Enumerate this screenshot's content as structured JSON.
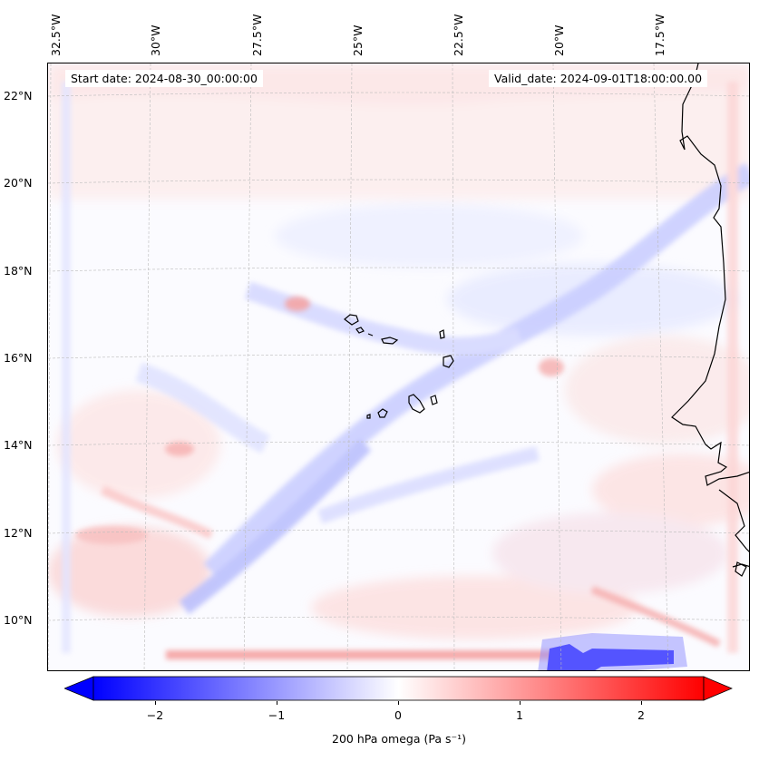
{
  "header": {
    "start_date": "Start date: 2024-08-30_00:00:00",
    "valid_date": "Valid_date: 2024-09-01T18:00:00.00"
  },
  "axes": {
    "lon_labels": [
      "32.5°W",
      "30°W",
      "27.5°W",
      "25°W",
      "22.5°W",
      "20°W",
      "17.5°W"
    ],
    "lat_labels": [
      "22°N",
      "20°N",
      "18°N",
      "16°N",
      "14°N",
      "12°N",
      "10°N"
    ]
  },
  "colorbar": {
    "label": "200 hPa omega (Pa s⁻¹)",
    "ticks": [
      "−2",
      "−1",
      "0",
      "1",
      "2"
    ],
    "min": -2.5,
    "max": 2.5,
    "low_color": "#0000ff",
    "mid_color": "#ffffff",
    "high_color": "#ff0000"
  },
  "chart_data": {
    "type": "map",
    "variable": "200 hPa omega",
    "units": "Pa s⁻¹",
    "lon_range": [
      -33,
      -15
    ],
    "lat_range": [
      8.8,
      22.8
    ],
    "colorbar_range": [
      -2.5,
      2.5
    ]
  }
}
